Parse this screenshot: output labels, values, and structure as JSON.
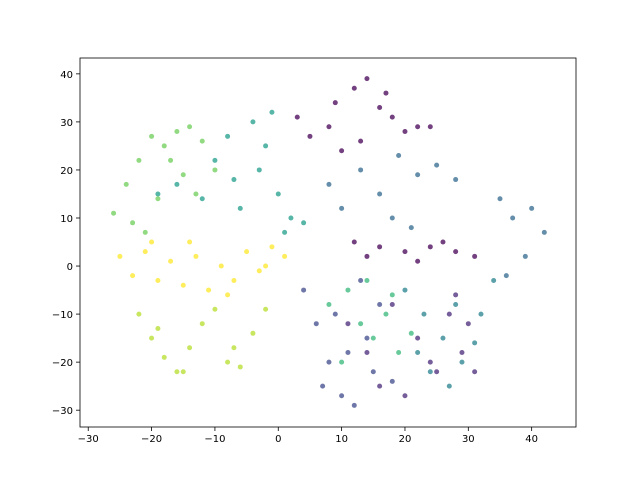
{
  "chart_data": {
    "type": "scatter",
    "xlim": [
      -31.3,
      47
    ],
    "ylim": [
      -33.5,
      43.3
    ],
    "xticks": [
      {
        "value": -30,
        "label": "−30"
      },
      {
        "value": -20,
        "label": "−20"
      },
      {
        "value": -10,
        "label": "−10"
      },
      0,
      10,
      20,
      30,
      40
    ],
    "yticks": [
      {
        "value": -30,
        "label": "−30"
      },
      {
        "value": -20,
        "label": "−20"
      },
      {
        "value": -10,
        "label": "−10"
      },
      0,
      10,
      20,
      30,
      40
    ],
    "series": [
      {
        "color": "#440154",
        "x": [
          3,
          5,
          8,
          10,
          12,
          14,
          16,
          18,
          20,
          22,
          24,
          9,
          13,
          17,
          12,
          16,
          20,
          24,
          28,
          31,
          14,
          22,
          26
        ],
        "y": [
          31,
          27,
          29,
          24,
          37,
          39,
          33,
          31,
          28,
          29,
          29,
          34,
          26,
          36,
          5,
          4,
          3,
          4,
          3,
          2,
          2,
          1,
          5
        ]
      },
      {
        "color": "#482878",
        "x": [
          11,
          14,
          18,
          22,
          25,
          27,
          29,
          16,
          20,
          24,
          28,
          30,
          31
        ],
        "y": [
          -12,
          -18,
          -8,
          -15,
          -22,
          -10,
          -18,
          -25,
          -27,
          -20,
          -6,
          -12,
          -22
        ]
      },
      {
        "color": "#3e4989",
        "x": [
          4,
          6,
          8,
          10,
          12,
          14,
          16,
          18,
          7,
          11,
          15,
          9,
          13
        ],
        "y": [
          -5,
          -12,
          -20,
          -27,
          -29,
          -15,
          -8,
          -24,
          -25,
          -18,
          -22,
          -10,
          -3
        ]
      },
      {
        "color": "#31688e",
        "x": [
          8,
          10,
          13,
          16,
          19,
          22,
          25,
          28,
          35,
          37,
          40,
          42,
          39,
          36,
          18,
          21
        ],
        "y": [
          17,
          12,
          20,
          15,
          23,
          19,
          21,
          18,
          14,
          10,
          12,
          7,
          2,
          -2,
          10,
          8
        ]
      },
      {
        "color": "#26828e",
        "x": [
          20,
          23,
          26,
          29,
          32,
          34,
          24,
          28,
          31,
          22,
          27
        ],
        "y": [
          -5,
          -10,
          -15,
          -20,
          -10,
          -3,
          -22,
          -8,
          -16,
          -18,
          -25
        ]
      },
      {
        "color": "#1f9e89",
        "x": [
          -10,
          -7,
          -4,
          -2,
          0,
          2,
          4,
          -12,
          -16,
          -19,
          -6,
          -3,
          -1,
          1,
          -8
        ],
        "y": [
          22,
          18,
          30,
          25,
          15,
          10,
          9,
          14,
          17,
          15,
          12,
          20,
          32,
          7,
          27
        ]
      },
      {
        "color": "#35b779",
        "x": [
          8,
          11,
          13,
          15,
          17,
          19,
          21,
          10,
          14,
          18
        ],
        "y": [
          -8,
          -5,
          -12,
          -15,
          -10,
          -18,
          -14,
          -20,
          -3,
          -6
        ]
      },
      {
        "color": "#6ece58",
        "x": [
          -26,
          -24,
          -22,
          -20,
          -18,
          -16,
          -14,
          -12,
          -10,
          -19,
          -23,
          -15,
          -21,
          -17,
          -13
        ],
        "y": [
          11,
          17,
          22,
          27,
          25,
          28,
          29,
          26,
          20,
          14,
          9,
          19,
          7,
          22,
          15
        ]
      },
      {
        "color": "#b5de2b",
        "x": [
          -22,
          -20,
          -18,
          -16,
          -14,
          -12,
          -10,
          -8,
          -6,
          -4,
          -2,
          -19,
          -15,
          -7
        ],
        "y": [
          -10,
          -15,
          -19,
          -22,
          -17,
          -12,
          -9,
          -20,
          -21,
          -14,
          -9,
          -13,
          -22,
          -17
        ]
      },
      {
        "color": "#fde725",
        "x": [
          -25,
          -23,
          -21,
          -19,
          -17,
          -15,
          -13,
          -11,
          -9,
          -7,
          -5,
          -3,
          -1,
          1,
          -20,
          -14,
          -8,
          -2
        ],
        "y": [
          2,
          -2,
          3,
          -3,
          1,
          -4,
          2,
          -5,
          0,
          -3,
          3,
          -1,
          4,
          2,
          5,
          5,
          -6,
          0
        ]
      }
    ]
  }
}
